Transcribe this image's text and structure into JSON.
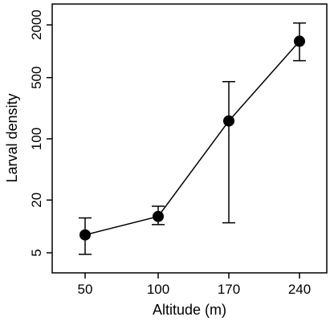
{
  "chart_data": {
    "type": "scatter",
    "connected": true,
    "xlabel": "Altitude (m)",
    "ylabel": "Larval density",
    "y_scale": "log",
    "ylim": [
      4,
      3500
    ],
    "x_ticks": [
      "50",
      "100",
      "170",
      "240"
    ],
    "y_ticks": [
      5,
      20,
      100,
      500,
      2000
    ],
    "y_tick_labels": [
      "5",
      "20",
      "100",
      "500",
      "2000"
    ],
    "grid": false,
    "legend": "none",
    "series": [
      {
        "categories": [
          "50",
          "100",
          "170",
          "240"
        ],
        "values": [
          8,
          13,
          160,
          1300
        ],
        "error_low": [
          4.8,
          10.5,
          11,
          780
        ],
        "error_high": [
          12.5,
          17,
          450,
          2100
        ]
      }
    ],
    "colors": {
      "marks": "#000000",
      "background": "#ffffff"
    }
  }
}
